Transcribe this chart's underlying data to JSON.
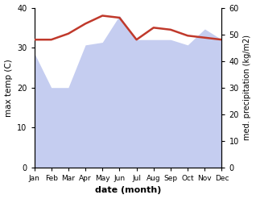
{
  "months": [
    "Jan",
    "Feb",
    "Mar",
    "Apr",
    "May",
    "Jun",
    "Jul",
    "Aug",
    "Sep",
    "Oct",
    "Nov",
    "Dec"
  ],
  "month_indices": [
    0,
    1,
    2,
    3,
    4,
    5,
    6,
    7,
    8,
    9,
    10,
    11
  ],
  "temperature": [
    32.0,
    32.0,
    33.5,
    36.0,
    38.0,
    37.5,
    32.0,
    35.0,
    34.5,
    33.0,
    32.5,
    32.0
  ],
  "precipitation": [
    43.0,
    30.0,
    30.0,
    46.0,
    47.0,
    57.0,
    48.0,
    48.0,
    48.0,
    46.0,
    52.0,
    48.0
  ],
  "temp_color": "#c0392b",
  "precip_fill_color": "#c5cdf0",
  "precip_line_color": "#aab4e8",
  "temp_ylim": [
    0,
    40
  ],
  "precip_ylim": [
    0,
    60
  ],
  "temp_yticks": [
    0,
    10,
    20,
    30,
    40
  ],
  "precip_yticks": [
    0,
    10,
    20,
    30,
    40,
    50,
    60
  ],
  "xlabel": "date (month)",
  "ylabel_left": "max temp (C)",
  "ylabel_right": "med. precipitation (kg/m2)",
  "bg_color": "#ffffff",
  "fig_width": 3.18,
  "fig_height": 2.47,
  "dpi": 100
}
